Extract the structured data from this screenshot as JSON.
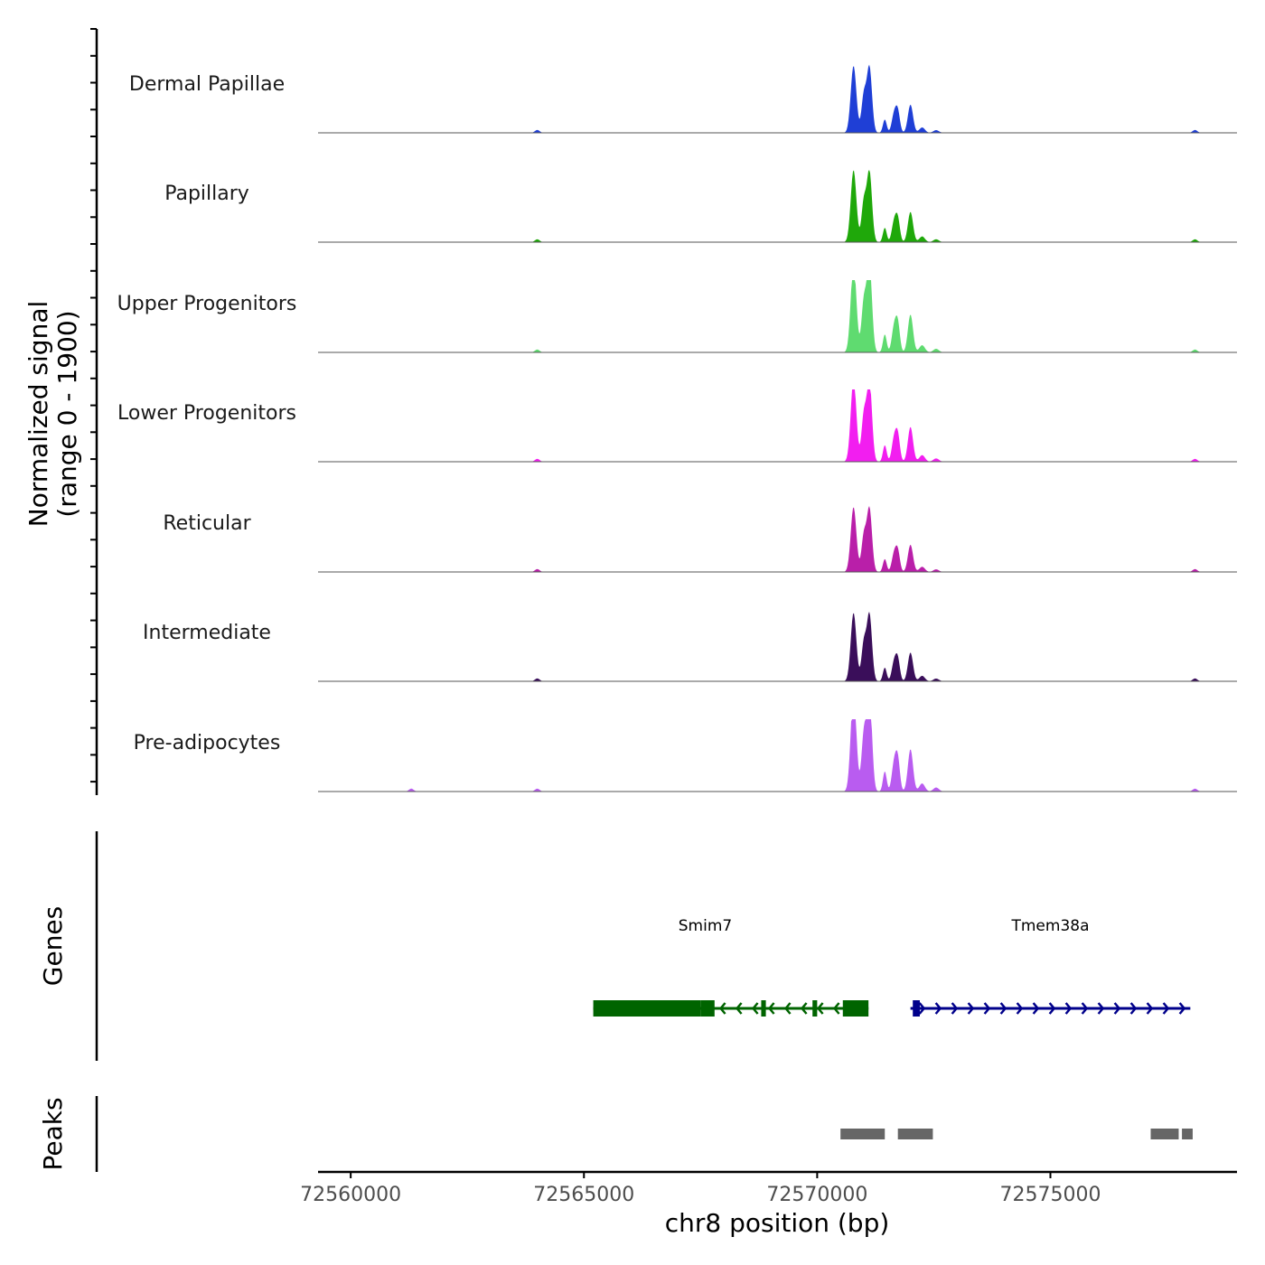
{
  "chart_data": {
    "type": "area",
    "title": "",
    "xlabel": "chr8 position (bp)",
    "ylabel": "Normalized signal",
    "ylabel_sub": "(range 0 - 1900)",
    "xlim": [
      72559300,
      72579000
    ],
    "ylim": [
      0,
      1900
    ],
    "x_ticks": [
      72560000,
      72565000,
      72570000,
      72575000
    ],
    "x_tick_labels": [
      "72560000",
      "72565000",
      "72570000",
      "72575000"
    ],
    "peaks_profile": [
      {
        "pos": 72570780,
        "h": 1.0,
        "w": 60
      },
      {
        "pos": 72571120,
        "h": 0.98,
        "w": 55
      },
      {
        "pos": 72571000,
        "h": 0.55,
        "w": 50
      },
      {
        "pos": 72571450,
        "h": 0.2,
        "w": 40
      },
      {
        "pos": 72571650,
        "h": 0.28,
        "w": 50
      },
      {
        "pos": 72571730,
        "h": 0.3,
        "w": 45
      },
      {
        "pos": 72572000,
        "h": 0.42,
        "w": 55
      },
      {
        "pos": 72572250,
        "h": 0.08,
        "w": 60
      },
      {
        "pos": 72572550,
        "h": 0.04,
        "w": 60
      }
    ],
    "tracks": [
      {
        "name": "Dermal Papillae",
        "color": "#1f3fd6",
        "scale": 0.93,
        "noise": [
          72564000,
          72578100
        ]
      },
      {
        "name": "Papillary",
        "color": "#1fa80a",
        "scale": 1.0,
        "noise": [
          72564000,
          72578100
        ]
      },
      {
        "name": "Upper Progenitors",
        "color": "#5fdb70",
        "scale": 1.25,
        "noise": [
          72564000,
          72578100
        ]
      },
      {
        "name": "Lower Progenitors",
        "color": "#f21ef0",
        "scale": 1.15,
        "noise": [
          72564000,
          72578100
        ]
      },
      {
        "name": "Reticular",
        "color": "#b91fa9",
        "scale": 0.9,
        "noise": [
          72564000,
          72578100
        ]
      },
      {
        "name": "Intermediate",
        "color": "#3a0e5a",
        "scale": 0.95,
        "noise": [
          72564000,
          72578100
        ]
      },
      {
        "name": "Pre-adipocytes",
        "color": "#b95cf0",
        "scale": 1.4,
        "noise": [
          72561300,
          72564000,
          72578100
        ]
      }
    ],
    "genes_label": "Genes",
    "genes": [
      {
        "name": "Smim7",
        "strand": "-",
        "color": "#006400",
        "start": 72565200,
        "end": 72571100,
        "exons": [
          [
            72565200,
            72567500
          ],
          [
            72567500,
            72567800
          ],
          [
            72568800,
            72568900
          ],
          [
            72569900,
            72570000
          ],
          [
            72570550,
            72571100
          ]
        ],
        "label_pos": 72567600
      },
      {
        "name": "Tmem38a",
        "strand": "+",
        "color": "#00008b",
        "start": 72572000,
        "end": 72578000,
        "exons": [
          [
            72572050,
            72572200
          ]
        ],
        "label_pos": 72575000
      }
    ],
    "peaks_label": "Peaks",
    "peaks": [
      [
        72570500,
        72571450
      ],
      [
        72571730,
        72572480
      ],
      [
        72577150,
        72577750
      ],
      [
        72577820,
        72578050
      ]
    ]
  }
}
